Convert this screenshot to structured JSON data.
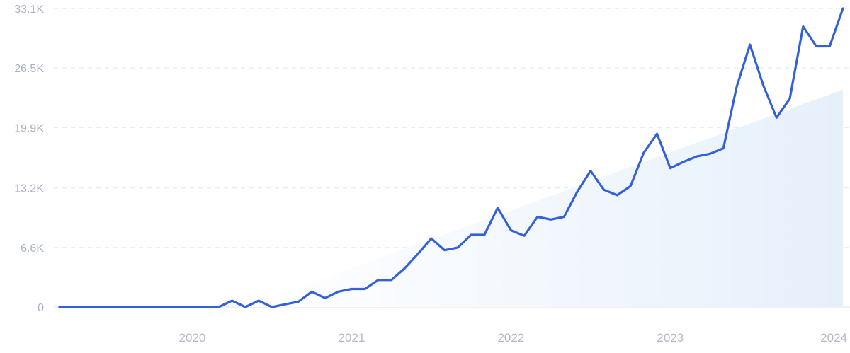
{
  "colors": {
    "line": "#3461db",
    "trend_fill_start": "#ffffff",
    "trend_fill_end": "#e6f0fb",
    "grid": "#dfe3ea",
    "tick_text": "#a9b2c2"
  },
  "chart_data": {
    "type": "line",
    "title": "",
    "xlabel": "",
    "ylabel": "",
    "grid": true,
    "x_ticks": [
      "2020",
      "2021",
      "2022",
      "2023",
      "2024"
    ],
    "y_ticks": [
      "0",
      "6.6K",
      "13.2K",
      "19.9K",
      "26.5K",
      "33.1K"
    ],
    "y_tick_values": [
      0,
      6600,
      13200,
      19900,
      26500,
      33100
    ],
    "ylim": [
      0,
      33100
    ],
    "xlim": [
      "2019-03",
      "2024-02"
    ],
    "series": [
      {
        "x": [
          "2019-03",
          "2019-04",
          "2019-05",
          "2019-06",
          "2019-07",
          "2019-08",
          "2019-09",
          "2019-10",
          "2019-11",
          "2019-12",
          "2020-01",
          "2020-02",
          "2020-03",
          "2020-04",
          "2020-05",
          "2020-06",
          "2020-07",
          "2020-08",
          "2020-09",
          "2020-10",
          "2020-11",
          "2020-12",
          "2021-01",
          "2021-02",
          "2021-03",
          "2021-04",
          "2021-05",
          "2021-06",
          "2021-07",
          "2021-08",
          "2021-09",
          "2021-10",
          "2021-11",
          "2021-12",
          "2022-01",
          "2022-02",
          "2022-03",
          "2022-04",
          "2022-05",
          "2022-06",
          "2022-07",
          "2022-08",
          "2022-09",
          "2022-10",
          "2022-11",
          "2022-12",
          "2023-01",
          "2023-02",
          "2023-03",
          "2023-04",
          "2023-05",
          "2023-06",
          "2023-07",
          "2023-08",
          "2023-09",
          "2023-10",
          "2023-11",
          "2023-12",
          "2024-01",
          "2024-02"
        ],
        "y": [
          0,
          0,
          0,
          0,
          0,
          0,
          0,
          0,
          0,
          0,
          0,
          0,
          0,
          700,
          0,
          700,
          0,
          300,
          600,
          1700,
          1000,
          1700,
          2000,
          2000,
          3000,
          3000,
          4300,
          5900,
          7600,
          6300,
          6600,
          8000,
          8000,
          11000,
          8500,
          7900,
          10000,
          9700,
          10000,
          12800,
          15100,
          13000,
          12400,
          13400,
          17100,
          19200,
          15400,
          16100,
          16700,
          17000,
          17600,
          24400,
          29100,
          24600,
          21000,
          23100,
          31100,
          28900,
          28900,
          33100
        ]
      }
    ],
    "trend": {
      "type": "area",
      "start": [
        "2020-05",
        0
      ],
      "end": [
        "2024-02",
        24100
      ]
    }
  }
}
